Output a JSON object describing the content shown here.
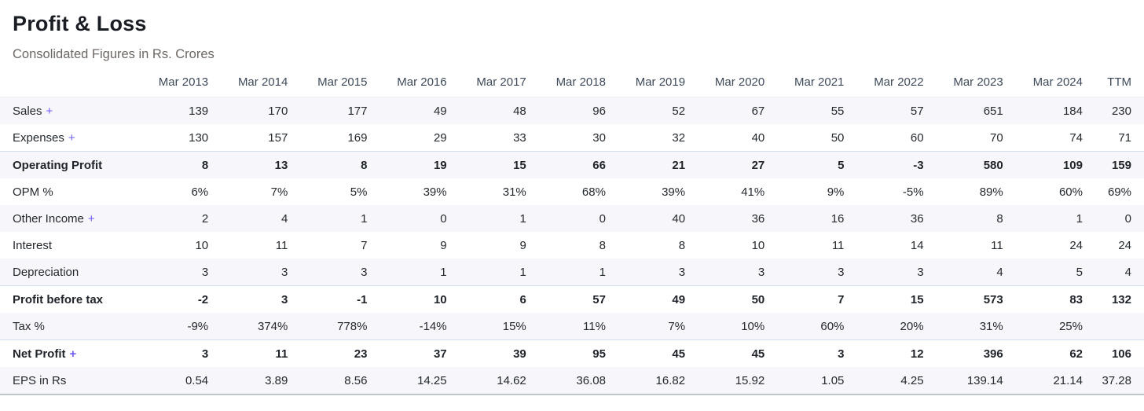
{
  "header": {
    "title": "Profit & Loss",
    "subtitle": "Consolidated Figures in Rs. Crores"
  },
  "colors": {
    "accent_purple": "#6e5cf4",
    "stripe_background": "#f7f7fb",
    "bold_row_top_border": "#d1def0",
    "title_text": "#1b1d25",
    "subtitle_text": "#6d6764",
    "column_header_text": "#3e4a59",
    "body_text": "#24292e"
  },
  "table": {
    "expand_symbol": "+",
    "columns": [
      "Mar 2013",
      "Mar 2014",
      "Mar 2015",
      "Mar 2016",
      "Mar 2017",
      "Mar 2018",
      "Mar 2019",
      "Mar 2020",
      "Mar 2021",
      "Mar 2022",
      "Mar 2023",
      "Mar 2024",
      "TTM"
    ],
    "rows": [
      {
        "label": "Sales",
        "expandable": true,
        "bold": false,
        "stripe": true,
        "values": [
          "139",
          "170",
          "177",
          "49",
          "48",
          "96",
          "52",
          "67",
          "55",
          "57",
          "651",
          "184",
          "230"
        ]
      },
      {
        "label": "Expenses",
        "expandable": true,
        "bold": false,
        "stripe": false,
        "values": [
          "130",
          "157",
          "169",
          "29",
          "33",
          "30",
          "32",
          "40",
          "50",
          "60",
          "70",
          "74",
          "71"
        ]
      },
      {
        "label": "Operating Profit",
        "expandable": false,
        "bold": true,
        "stripe": true,
        "values": [
          "8",
          "13",
          "8",
          "19",
          "15",
          "66",
          "21",
          "27",
          "5",
          "-3",
          "580",
          "109",
          "159"
        ]
      },
      {
        "label": "OPM %",
        "expandable": false,
        "bold": false,
        "stripe": false,
        "values": [
          "6%",
          "7%",
          "5%",
          "39%",
          "31%",
          "68%",
          "39%",
          "41%",
          "9%",
          "-5%",
          "89%",
          "60%",
          "69%"
        ]
      },
      {
        "label": "Other Income",
        "expandable": true,
        "bold": false,
        "stripe": true,
        "values": [
          "2",
          "4",
          "1",
          "0",
          "1",
          "0",
          "40",
          "36",
          "16",
          "36",
          "8",
          "1",
          "0"
        ]
      },
      {
        "label": "Interest",
        "expandable": false,
        "bold": false,
        "stripe": false,
        "values": [
          "10",
          "11",
          "7",
          "9",
          "9",
          "8",
          "8",
          "10",
          "11",
          "14",
          "11",
          "24",
          "24"
        ]
      },
      {
        "label": "Depreciation",
        "expandable": false,
        "bold": false,
        "stripe": true,
        "values": [
          "3",
          "3",
          "3",
          "1",
          "1",
          "1",
          "3",
          "3",
          "3",
          "3",
          "4",
          "5",
          "4"
        ]
      },
      {
        "label": "Profit before tax",
        "expandable": false,
        "bold": true,
        "stripe": false,
        "values": [
          "-2",
          "3",
          "-1",
          "10",
          "6",
          "57",
          "49",
          "50",
          "7",
          "15",
          "573",
          "83",
          "132"
        ]
      },
      {
        "label": "Tax %",
        "expandable": false,
        "bold": false,
        "stripe": true,
        "values": [
          "-9%",
          "374%",
          "778%",
          "-14%",
          "15%",
          "11%",
          "7%",
          "10%",
          "60%",
          "20%",
          "31%",
          "25%",
          ""
        ]
      },
      {
        "label": "Net Profit",
        "expandable": true,
        "bold": true,
        "stripe": false,
        "values": [
          "3",
          "11",
          "23",
          "37",
          "39",
          "95",
          "45",
          "45",
          "3",
          "12",
          "396",
          "62",
          "106"
        ]
      },
      {
        "label": "EPS in Rs",
        "expandable": false,
        "bold": false,
        "stripe": true,
        "values": [
          "0.54",
          "3.89",
          "8.56",
          "14.25",
          "14.62",
          "36.08",
          "16.82",
          "15.92",
          "1.05",
          "4.25",
          "139.14",
          "21.14",
          "37.28"
        ]
      }
    ]
  }
}
